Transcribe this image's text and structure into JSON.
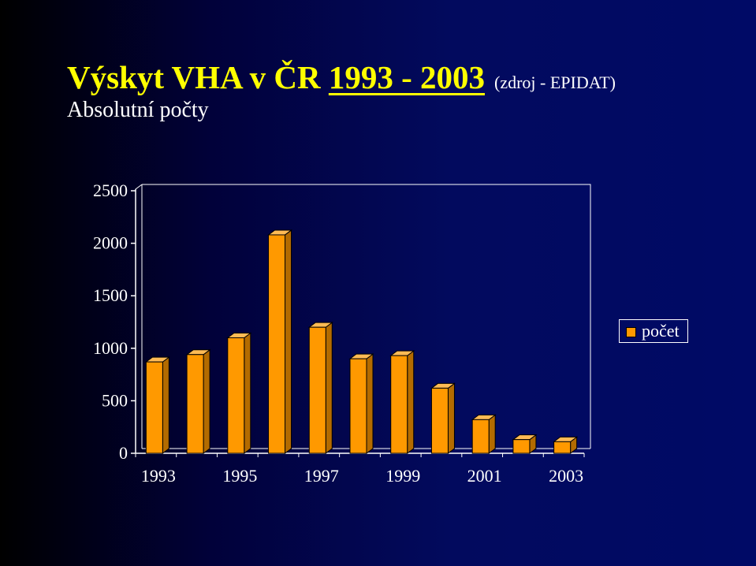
{
  "slide": {
    "title_main": "Výskyt VHA v ČR",
    "title_years": "1993 - 2003",
    "title_source": "(zdroj - EPIDAT)",
    "subtitle": "Absolutní počty"
  },
  "chart_data": {
    "type": "bar",
    "categories": [
      "1993",
      "1994",
      "1995",
      "1996",
      "1997",
      "1998",
      "1999",
      "2000",
      "2001",
      "2002",
      "2003"
    ],
    "x_tick_labels": [
      "1993",
      "1995",
      "1997",
      "1999",
      "2001",
      "2003"
    ],
    "series": [
      {
        "name": "počet",
        "values": [
          870,
          940,
          1100,
          2080,
          1200,
          900,
          930,
          620,
          320,
          130,
          110
        ],
        "color": "#ff9900"
      }
    ],
    "ylim": [
      0,
      2500
    ],
    "y_ticks": [
      0,
      500,
      1000,
      1500,
      2000,
      2500
    ],
    "legend_position": "right",
    "grid": false,
    "style": "3d-bar"
  }
}
